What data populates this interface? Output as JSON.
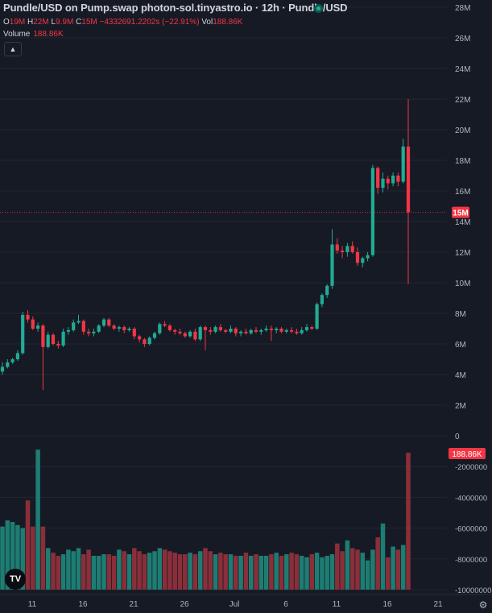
{
  "header": {
    "title": "Pundle/USD on Pump.swap photon-sol.tinyastro.io · 12h · Pundle/USD",
    "ohlc": [
      {
        "key": "O",
        "value": "19M"
      },
      {
        "key": "H",
        "value": "22M"
      },
      {
        "key": "L",
        "value": "9.9M"
      },
      {
        "key": "C",
        "value": "15M"
      },
      {
        "key": "",
        "value": "−4332691.2202s (−22.91%)"
      }
    ],
    "volume_label": "Volume",
    "volume_value": "188.86K",
    "vol_key": "Vol",
    "vol_value": "188.86K",
    "collapse_icon": "chevron-up-icon"
  },
  "colors": {
    "up": "#22ab94",
    "down": "#f23645",
    "up_vol": "#1e7d73",
    "down_vol": "#8a2f3a",
    "background": "#161a25"
  },
  "chart_data": {
    "type": "candlestick",
    "price_axis_ticks": [
      "28M",
      "26M",
      "24M",
      "22M",
      "20M",
      "18M",
      "16M",
      "14M",
      "12M",
      "10M",
      "8M",
      "6M",
      "4M",
      "2M",
      "0"
    ],
    "volume_axis_ticks": [
      "-2000000",
      "-4000000",
      "-6000000",
      "-8000000",
      "-10000000"
    ],
    "x_tick_labels": [
      "11",
      "16",
      "21",
      "26",
      "Jul",
      "6",
      "11",
      "16",
      "21"
    ],
    "last_price_label": "15M",
    "last_volume_label": "188.86K",
    "ylim": [
      0,
      28000000
    ],
    "candles": [
      [
        4.2,
        4.8,
        4.0,
        4.5
      ],
      [
        4.5,
        5.0,
        4.4,
        4.8
      ],
      [
        4.8,
        5.1,
        4.7,
        5.0
      ],
      [
        5.0,
        5.6,
        4.9,
        5.4
      ],
      [
        5.4,
        8.1,
        5.3,
        7.9
      ],
      [
        7.9,
        8.2,
        7.4,
        7.6
      ],
      [
        7.6,
        7.8,
        6.9,
        7.0
      ],
      [
        7.0,
        7.4,
        6.8,
        7.2
      ],
      [
        7.2,
        7.3,
        3.0,
        5.8
      ],
      [
        5.8,
        6.8,
        5.7,
        6.6
      ],
      [
        6.6,
        6.7,
        5.9,
        6.0
      ],
      [
        6.0,
        6.2,
        5.7,
        5.9
      ],
      [
        5.9,
        7.0,
        5.8,
        6.8
      ],
      [
        6.8,
        7.1,
        6.6,
        6.9
      ],
      [
        6.9,
        7.6,
        6.8,
        7.4
      ],
      [
        7.4,
        7.9,
        7.3,
        7.5
      ],
      [
        7.5,
        7.6,
        6.6,
        6.8
      ],
      [
        6.8,
        7.0,
        6.5,
        6.7
      ],
      [
        6.7,
        7.0,
        6.5,
        6.8
      ],
      [
        6.8,
        7.3,
        6.7,
        7.2
      ],
      [
        7.2,
        7.7,
        7.1,
        7.6
      ],
      [
        7.6,
        7.7,
        7.1,
        7.2
      ],
      [
        7.2,
        7.3,
        6.9,
        7.0
      ],
      [
        7.0,
        7.2,
        6.8,
        7.1
      ],
      [
        7.1,
        7.2,
        6.7,
        6.9
      ],
      [
        6.9,
        7.1,
        6.8,
        7.0
      ],
      [
        7.0,
        7.1,
        6.3,
        6.5
      ],
      [
        6.5,
        6.6,
        6.1,
        6.3
      ],
      [
        6.3,
        6.4,
        5.8,
        6.0
      ],
      [
        6.0,
        6.5,
        5.9,
        6.4
      ],
      [
        6.4,
        6.8,
        6.3,
        6.7
      ],
      [
        6.7,
        7.4,
        6.6,
        7.3
      ],
      [
        7.3,
        7.5,
        7.1,
        7.2
      ],
      [
        7.2,
        7.3,
        6.8,
        6.9
      ],
      [
        6.9,
        7.0,
        6.6,
        6.8
      ],
      [
        6.8,
        7.0,
        6.6,
        6.7
      ],
      [
        6.7,
        6.8,
        6.4,
        6.5
      ],
      [
        6.5,
        6.9,
        6.4,
        6.8
      ],
      [
        6.8,
        7.0,
        6.2,
        6.3
      ],
      [
        6.3,
        7.2,
        6.2,
        7.1
      ],
      [
        7.1,
        7.2,
        5.6,
        6.9
      ],
      [
        6.9,
        7.1,
        6.6,
        6.8
      ],
      [
        6.8,
        7.2,
        6.7,
        7.1
      ],
      [
        7.1,
        7.3,
        6.8,
        6.9
      ],
      [
        6.9,
        7.0,
        6.7,
        6.8
      ],
      [
        6.8,
        7.2,
        6.7,
        7.0
      ],
      [
        7.0,
        7.1,
        6.5,
        6.7
      ],
      [
        6.7,
        6.9,
        6.5,
        6.8
      ],
      [
        6.8,
        7.0,
        6.6,
        6.7
      ],
      [
        6.7,
        7.0,
        6.6,
        6.9
      ],
      [
        6.9,
        7.1,
        6.7,
        6.8
      ],
      [
        6.8,
        7.0,
        6.6,
        6.9
      ],
      [
        6.9,
        7.2,
        6.8,
        7.0
      ],
      [
        7.0,
        7.2,
        6.2,
        6.9
      ],
      [
        6.9,
        7.1,
        6.7,
        7.0
      ],
      [
        7.0,
        7.1,
        6.7,
        6.8
      ],
      [
        6.8,
        7.0,
        6.7,
        6.9
      ],
      [
        6.9,
        7.1,
        6.7,
        6.8
      ],
      [
        6.8,
        7.0,
        6.6,
        6.7
      ],
      [
        6.7,
        7.1,
        6.6,
        6.9
      ],
      [
        6.9,
        7.3,
        6.8,
        7.1
      ],
      [
        7.1,
        7.2,
        6.9,
        7.0
      ],
      [
        7.0,
        8.7,
        6.9,
        8.6
      ],
      [
        8.6,
        9.3,
        8.4,
        9.2
      ],
      [
        9.2,
        9.9,
        9.0,
        9.8
      ],
      [
        9.8,
        13.5,
        9.6,
        12.5
      ],
      [
        12.5,
        12.9,
        11.9,
        12.1
      ],
      [
        12.1,
        12.4,
        11.6,
        12.0
      ],
      [
        12.0,
        12.6,
        11.7,
        12.4
      ],
      [
        12.4,
        12.7,
        11.9,
        12.0
      ],
      [
        12.0,
        12.3,
        11.1,
        11.3
      ],
      [
        11.3,
        11.7,
        11.0,
        11.6
      ],
      [
        11.6,
        12.0,
        11.4,
        11.8
      ],
      [
        11.8,
        17.7,
        11.7,
        17.5
      ],
      [
        17.5,
        17.6,
        15.8,
        16.2
      ],
      [
        16.2,
        17.2,
        15.9,
        16.8
      ],
      [
        16.8,
        17.0,
        16.1,
        16.5
      ],
      [
        16.5,
        17.2,
        16.3,
        17.0
      ],
      [
        17.0,
        17.2,
        16.3,
        16.6
      ],
      [
        16.6,
        19.4,
        16.5,
        18.9
      ],
      [
        18.9,
        22.0,
        9.9,
        14.6
      ]
    ],
    "volumes": [
      5.9,
      5.5,
      5.6,
      5.8,
      6.0,
      4.2,
      5.9,
      0.9,
      5.9,
      7.3,
      7.6,
      7.8,
      7.7,
      7.4,
      7.5,
      7.3,
      7.7,
      7.4,
      7.8,
      7.8,
      7.7,
      7.7,
      7.8,
      7.4,
      7.5,
      7.7,
      7.3,
      7.5,
      7.7,
      7.6,
      7.5,
      7.3,
      7.4,
      7.5,
      7.6,
      7.7,
      7.7,
      7.6,
      7.7,
      7.5,
      7.3,
      7.5,
      7.7,
      7.6,
      7.7,
      7.7,
      7.8,
      7.8,
      7.6,
      7.8,
      7.7,
      7.8,
      7.8,
      7.7,
      7.6,
      7.8,
      7.7,
      7.6,
      7.7,
      7.8,
      7.9,
      7.7,
      7.6,
      7.9,
      7.8,
      7.7,
      7.0,
      7.5,
      6.8,
      7.3,
      7.4,
      7.6,
      8.1,
      7.4,
      6.6,
      5.7,
      7.9,
      7.2,
      7.4,
      7.1,
      1.1
    ]
  }
}
